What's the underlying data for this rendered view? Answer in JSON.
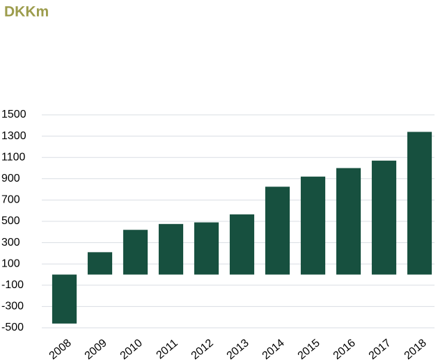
{
  "chart_data": {
    "type": "bar",
    "title": "DKKm",
    "categories": [
      "2008",
      "2009",
      "2010",
      "2011",
      "2012",
      "2013",
      "2014",
      "2015",
      "2016",
      "2017",
      "2018"
    ],
    "values": [
      -460,
      210,
      420,
      475,
      490,
      565,
      825,
      920,
      1000,
      1070,
      1340
    ],
    "color": "#17503f",
    "ylim": [
      -500,
      1500
    ],
    "yticks": [
      -500,
      -300,
      -100,
      100,
      300,
      500,
      700,
      900,
      1100,
      1300,
      1500
    ],
    "grid": true
  }
}
